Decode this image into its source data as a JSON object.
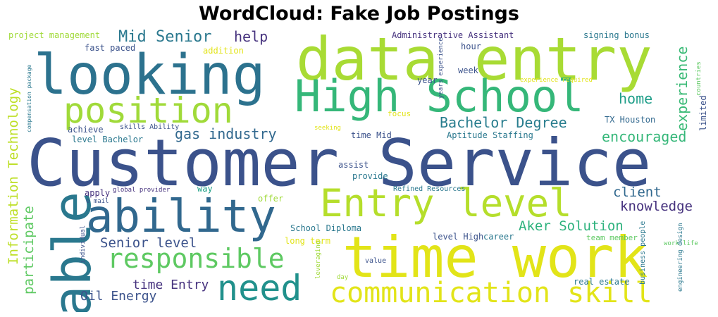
{
  "title": "WordCloud: Fake Job Postings",
  "palette": {
    "dark_purple": "#46327e",
    "blue": "#365c8d",
    "teal_blue": "#277f8e",
    "teal": "#1fa187",
    "green": "#4ac16d",
    "lime": "#a0da39",
    "yellow": "#fde725"
  },
  "words": {
    "customer_service": "Customer Service",
    "data_entry": "data entry",
    "looking": "looking",
    "high_school": "High School",
    "time_work": "time work",
    "able": "able",
    "ability": "ability",
    "entry_level": "Entry level",
    "position": "position",
    "need": "need",
    "communication_skill": "communication skill",
    "responsible": "responsible",
    "mid_senior": "Mid Senior",
    "help": "help",
    "experience": "experience",
    "home": "home",
    "bachelor_degree": "Bachelor Degree",
    "gas_industry": "gas industry",
    "encouraged": "encouraged",
    "information_technology": "Information Technology",
    "client": "client",
    "knowledge": "knowledge",
    "aker_solution": "Aker Solution",
    "senior_level": "Senior level",
    "participate": "participate",
    "time_entry": "time Entry",
    "oil_energy": "Oil Energy",
    "project_management": "project management",
    "administrative_assistant": "Administrative Assistant",
    "signing_bonus": "signing bonus",
    "fast_paced": "fast paced",
    "addition": "addition",
    "hour": "hour",
    "week": "week",
    "year": "year",
    "tx_houston": "TX Houston",
    "limited": "limited",
    "aptitude_staffing": "Aptitude Staffing",
    "time_mid": "time Mid",
    "focus": "focus",
    "achieve": "achieve",
    "skills_ability": "skills Ability",
    "level_bachelor": "level Bachelor",
    "assist": "assist",
    "provide": "provide",
    "apply": "apply",
    "global_provider": "global provider",
    "refined_resources": "Refined Resources",
    "way": "way",
    "offer": "offer",
    "e_mail": "e mail",
    "school_diploma": "School Diploma",
    "team_member": "team member",
    "long_term": "long term",
    "level_high": "level High",
    "career": "career",
    "real_estate": "real estate",
    "value": "value",
    "day": "day",
    "individual": "individual",
    "leveraging": "leveraging",
    "business_people": "business people",
    "work_life": "work life",
    "engineering_design": "engineering design",
    "years_experience": "years experience",
    "experience_required": "experience required",
    "compensation_package": "compensation package",
    "seeking": "seeking",
    "countries": "countries"
  }
}
